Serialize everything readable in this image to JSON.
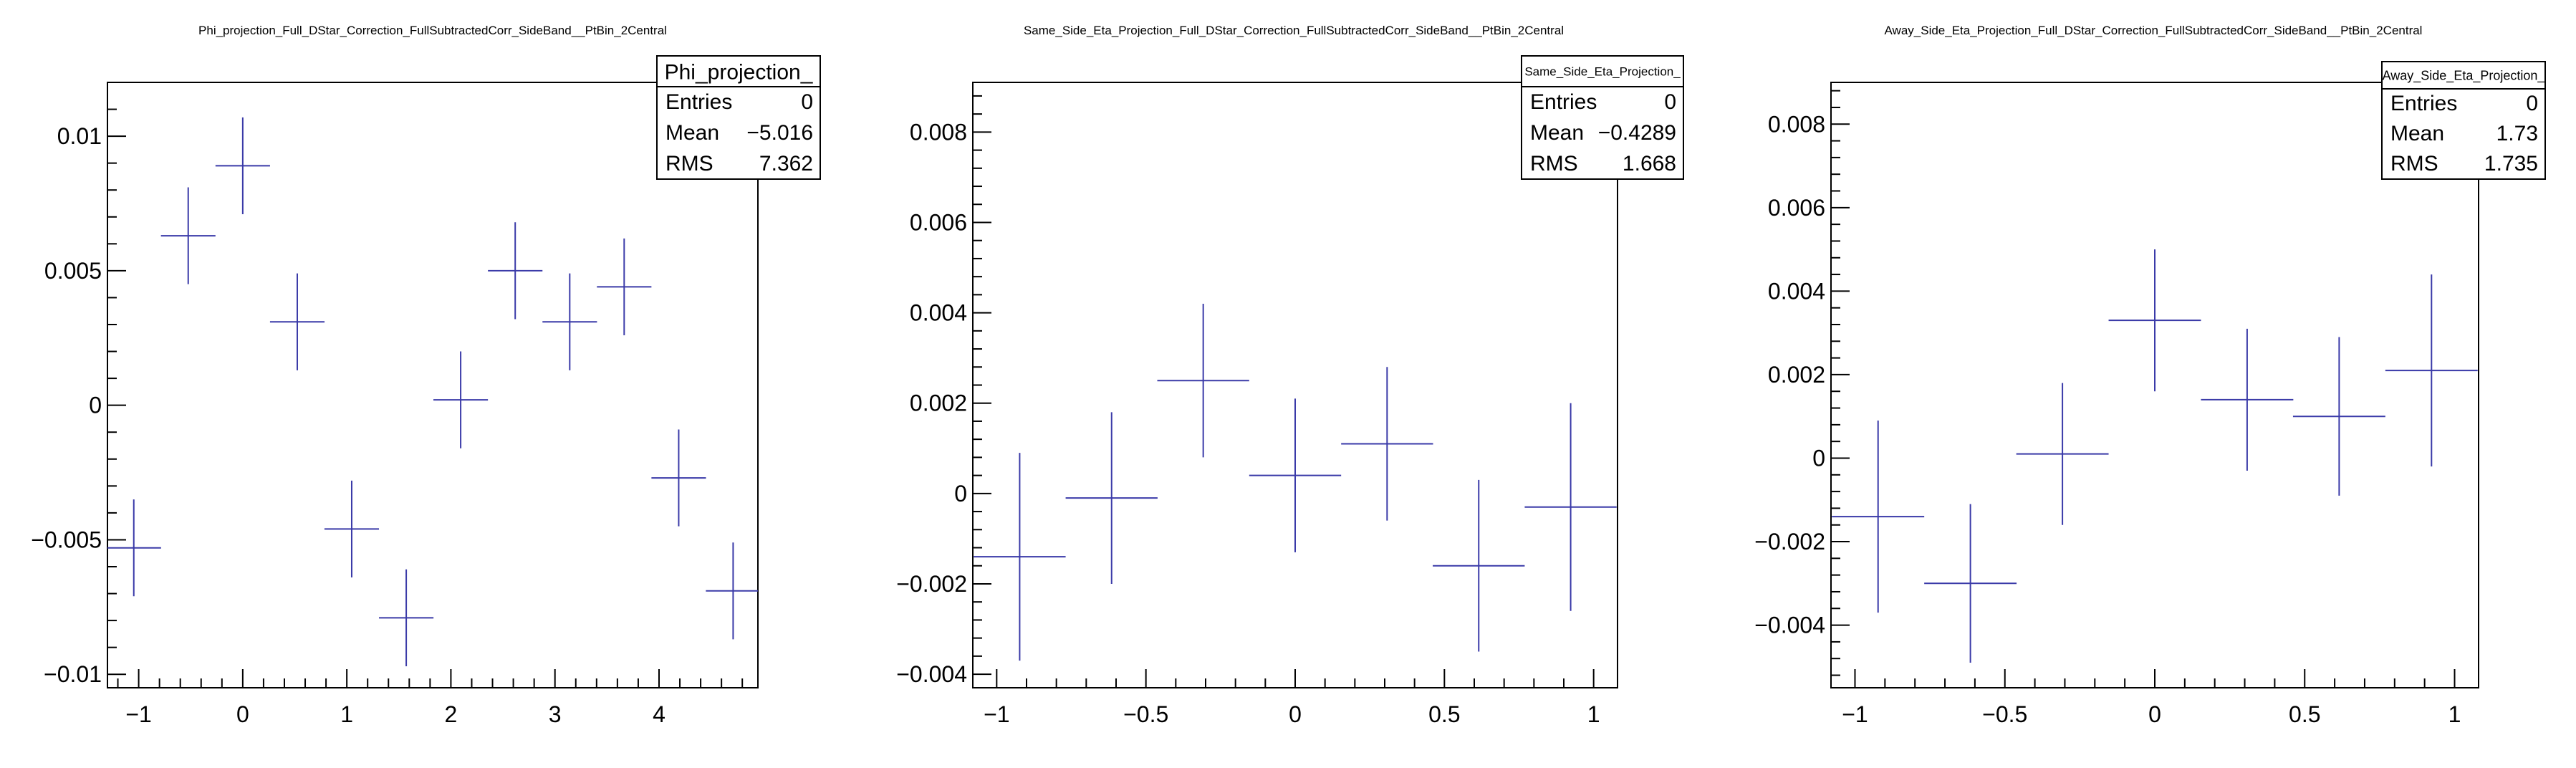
{
  "chart_data": [
    {
      "type": "scatter",
      "title": "Phi_projection_Full_DStar_Correction_FullSubtractedCorr_SideBand__PtBin_2Central",
      "xlim": [
        -1.3,
        4.95
      ],
      "ylim": [
        -0.0105,
        0.012
      ],
      "xticks": [
        -1,
        0,
        1,
        2,
        3,
        4
      ],
      "xtick_labels": [
        "−1",
        "0",
        "1",
        "2",
        "3",
        "4"
      ],
      "yticks": [
        -0.01,
        -0.005,
        0,
        0.005,
        0.01
      ],
      "ytick_labels": [
        "−0.01",
        "−0.005",
        "0",
        "0.005",
        "0.01"
      ],
      "points": [
        {
          "x": -1.047,
          "xerr": 0.262,
          "y": -0.0053,
          "yerr": 0.0018
        },
        {
          "x": -0.524,
          "xerr": 0.262,
          "y": 0.0063,
          "yerr": 0.0018
        },
        {
          "x": 0.0,
          "xerr": 0.262,
          "y": 0.0089,
          "yerr": 0.0018
        },
        {
          "x": 0.524,
          "xerr": 0.262,
          "y": 0.0031,
          "yerr": 0.0018
        },
        {
          "x": 1.047,
          "xerr": 0.262,
          "y": -0.0046,
          "yerr": 0.0018
        },
        {
          "x": 1.571,
          "xerr": 0.262,
          "y": -0.0079,
          "yerr": 0.0018
        },
        {
          "x": 2.094,
          "xerr": 0.262,
          "y": 0.0002,
          "yerr": 0.0018
        },
        {
          "x": 2.618,
          "xerr": 0.262,
          "y": 0.005,
          "yerr": 0.0018
        },
        {
          "x": 3.142,
          "xerr": 0.262,
          "y": 0.0031,
          "yerr": 0.0018
        },
        {
          "x": 3.665,
          "xerr": 0.262,
          "y": 0.0044,
          "yerr": 0.0018
        },
        {
          "x": 4.189,
          "xerr": 0.262,
          "y": -0.0027,
          "yerr": 0.0018
        },
        {
          "x": 4.712,
          "xerr": 0.262,
          "y": -0.0069,
          "yerr": 0.0018
        }
      ],
      "stats": {
        "name": "Phi_projection_",
        "entries_label": "Entries",
        "entries": "0",
        "mean_label": "Mean",
        "mean": "−5.016",
        "rms_label": "RMS",
        "rms": "7.362"
      }
    },
    {
      "type": "scatter",
      "title": "Same_Side_Eta_Projection_Full_DStar_Correction_FullSubtractedCorr_SideBand__PtBin_2Central",
      "xlim": [
        -1.08,
        1.08
      ],
      "ylim": [
        -0.0043,
        0.0091
      ],
      "xticks": [
        -1,
        -0.5,
        0,
        0.5,
        1
      ],
      "xtick_labels": [
        "−1",
        "−0.5",
        "0",
        "0.5",
        "1"
      ],
      "yticks": [
        -0.004,
        -0.002,
        0,
        0.002,
        0.004,
        0.006,
        0.008
      ],
      "ytick_labels": [
        "−0.004",
        "−0.002",
        "0",
        "0.002",
        "0.004",
        "0.006",
        "0.008"
      ],
      "points": [
        {
          "x": -0.923,
          "xerr": 0.154,
          "y": -0.0014,
          "yerr": 0.0023
        },
        {
          "x": -0.615,
          "xerr": 0.154,
          "y": -0.0001,
          "yerr": 0.0019
        },
        {
          "x": -0.308,
          "xerr": 0.154,
          "y": 0.0025,
          "yerr": 0.0017
        },
        {
          "x": 0.0,
          "xerr": 0.154,
          "y": 0.0004,
          "yerr": 0.0017
        },
        {
          "x": 0.308,
          "xerr": 0.154,
          "y": 0.0011,
          "yerr": 0.0017
        },
        {
          "x": 0.615,
          "xerr": 0.154,
          "y": -0.0016,
          "yerr": 0.0019
        },
        {
          "x": 0.923,
          "xerr": 0.154,
          "y": -0.0003,
          "yerr": 0.0023
        }
      ],
      "stats": {
        "name": "Same_Side_Eta_Projection_",
        "entries_label": "Entries",
        "entries": "0",
        "mean_label": "Mean",
        "mean": "−0.4289",
        "rms_label": "RMS",
        "rms": "1.668"
      }
    },
    {
      "type": "scatter",
      "title": "Away_Side_Eta_Projection_Full_DStar_Correction_FullSubtractedCorr_SideBand__PtBin_2Central",
      "xlim": [
        -1.08,
        1.08
      ],
      "ylim": [
        -0.0055,
        0.009
      ],
      "xticks": [
        -1,
        -0.5,
        0,
        0.5,
        1
      ],
      "xtick_labels": [
        "−1",
        "−0.5",
        "0",
        "0.5",
        "1"
      ],
      "yticks": [
        -0.004,
        -0.002,
        0,
        0.002,
        0.004,
        0.006,
        0.008
      ],
      "ytick_labels": [
        "−0.004",
        "−0.002",
        "0",
        "0.002",
        "0.004",
        "0.006",
        "0.008"
      ],
      "points": [
        {
          "x": -0.923,
          "xerr": 0.154,
          "y": -0.0014,
          "yerr": 0.0023
        },
        {
          "x": -0.615,
          "xerr": 0.154,
          "y": -0.003,
          "yerr": 0.0019
        },
        {
          "x": -0.308,
          "xerr": 0.154,
          "y": 0.0001,
          "yerr": 0.0017
        },
        {
          "x": 0.0,
          "xerr": 0.154,
          "y": 0.0033,
          "yerr": 0.0017
        },
        {
          "x": 0.308,
          "xerr": 0.154,
          "y": 0.0014,
          "yerr": 0.0017
        },
        {
          "x": 0.615,
          "xerr": 0.154,
          "y": 0.001,
          "yerr": 0.0019
        },
        {
          "x": 0.923,
          "xerr": 0.154,
          "y": 0.0021,
          "yerr": 0.0023
        }
      ],
      "stats": {
        "name": "Away_Side_Eta_Projection_",
        "entries_label": "Entries",
        "entries": "0",
        "mean_label": "Mean",
        "mean": "1.73",
        "rms_label": "RMS",
        "rms": "1.735"
      }
    }
  ],
  "colors": {
    "marker": "#3a3aa8",
    "frame": "#000000"
  }
}
